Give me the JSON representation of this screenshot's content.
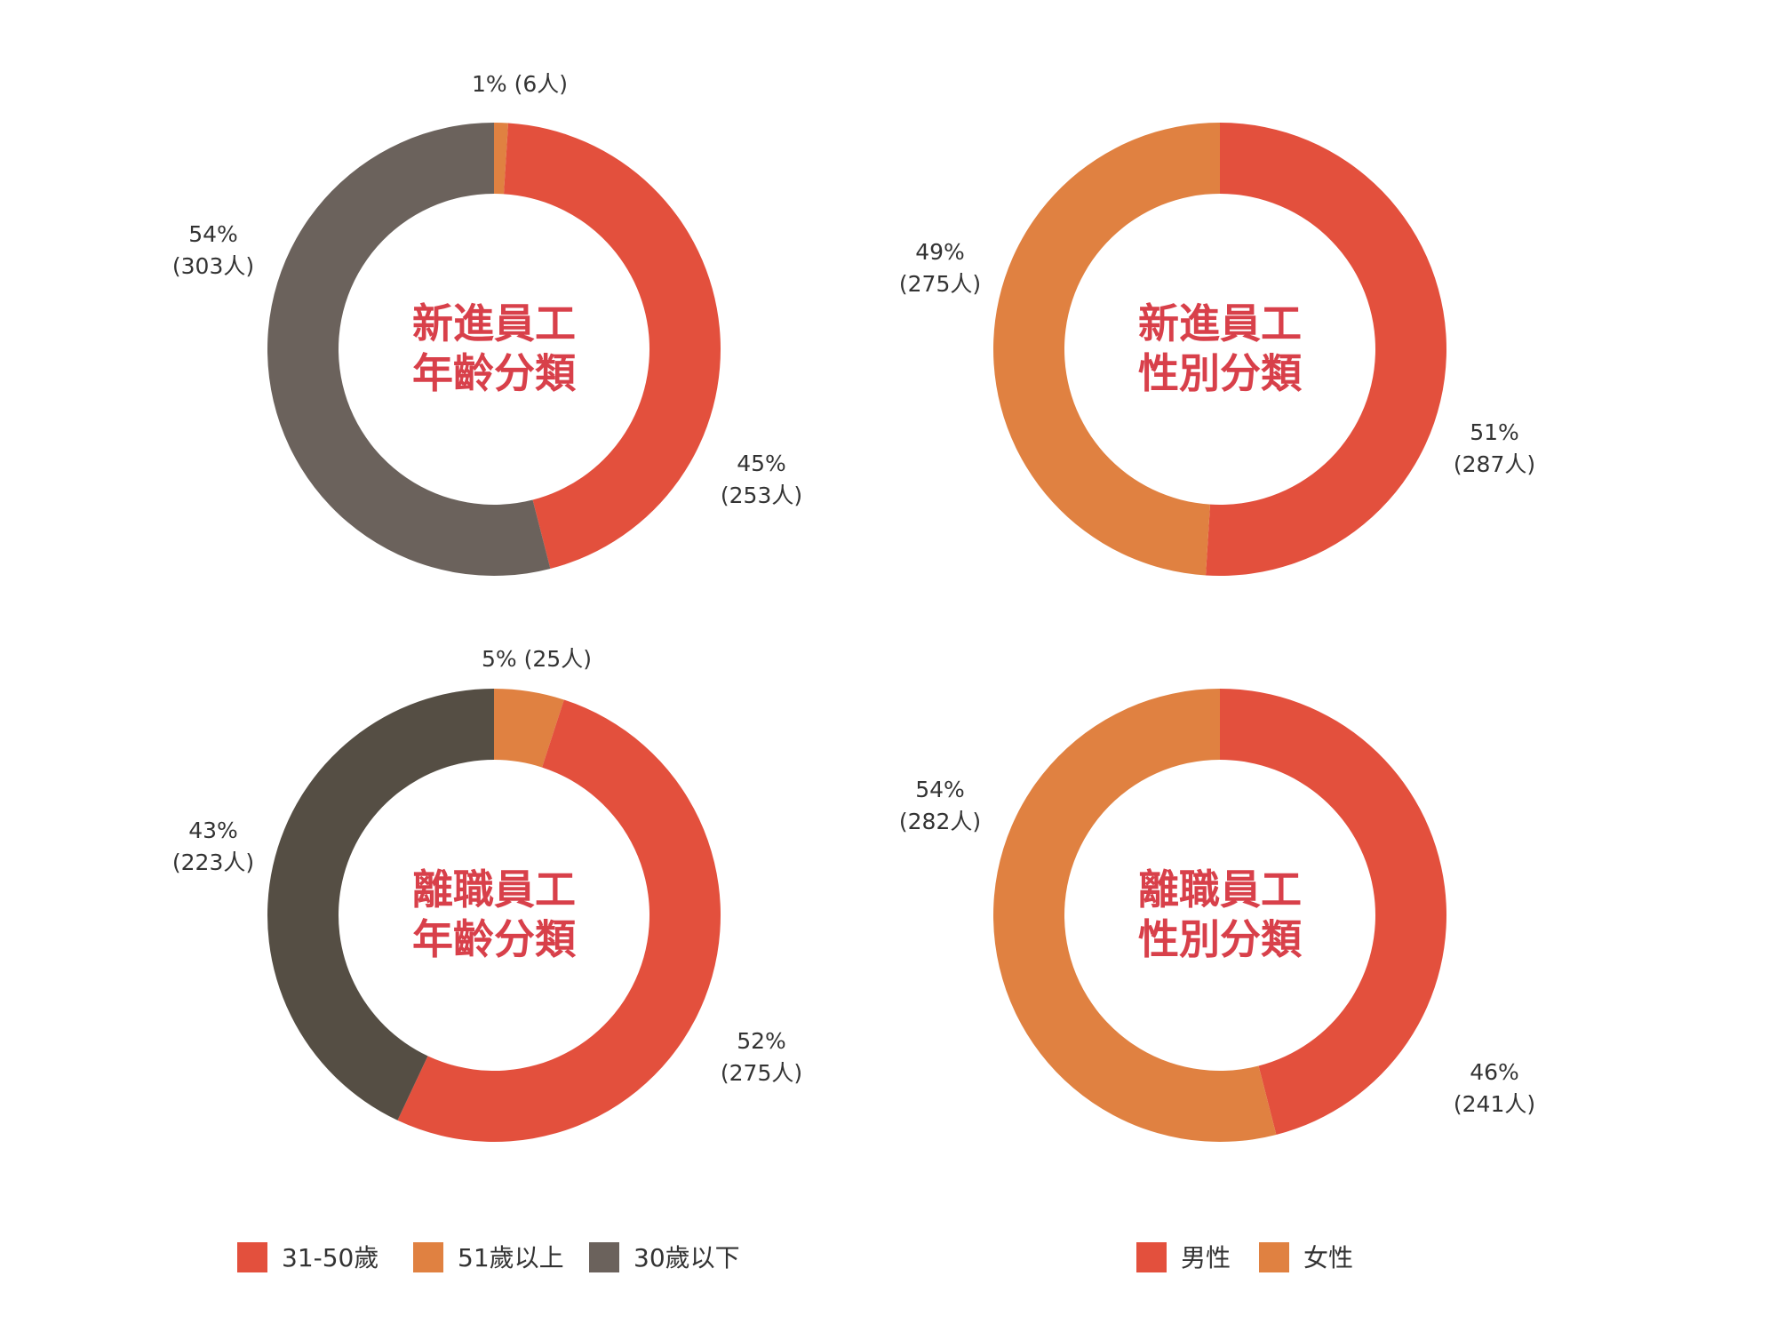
{
  "chart_data": [
    {
      "type": "pie",
      "title": [
        "新進員工",
        "年齡分類"
      ],
      "slices": [
        {
          "name": "51歲以上",
          "value": 1,
          "label": "1% (6人)",
          "color": "#e08141"
        },
        {
          "name": "31-50歲",
          "value": 45,
          "label": [
            "45%",
            "(253人)"
          ],
          "color": "#e3503d"
        },
        {
          "name": "30歲以下",
          "value": 54,
          "label": [
            "54%",
            "(303人)"
          ],
          "color": "#6b625c"
        }
      ]
    },
    {
      "type": "pie",
      "title": [
        "新進員工",
        "性別分類"
      ],
      "slices": [
        {
          "name": "男性",
          "value": 51,
          "label": [
            "51%",
            "(287人)"
          ],
          "color": "#e3503d"
        },
        {
          "name": "女性",
          "value": 49,
          "label": [
            "49%",
            "(275人)"
          ],
          "color": "#e08141"
        }
      ]
    },
    {
      "type": "pie",
      "title": [
        "離職員工",
        "年齡分類"
      ],
      "slices": [
        {
          "name": "51歲以上",
          "value": 5,
          "label": "5% (25人)",
          "color": "#e08141"
        },
        {
          "name": "31-50歲",
          "value": 52,
          "label": [
            "52%",
            "(275人)"
          ],
          "color": "#e3503d"
        },
        {
          "name": "30歲以下",
          "value": 43,
          "label": [
            "43%",
            "(223人)"
          ],
          "color": "#554e44"
        }
      ]
    },
    {
      "type": "pie",
      "title": [
        "離職員工",
        "性別分類"
      ],
      "slices": [
        {
          "name": "男性",
          "value": 46,
          "label": [
            "46%",
            "(241人)"
          ],
          "color": "#e3503d"
        },
        {
          "name": "女性",
          "value": 54,
          "label": [
            "54%",
            "(282人)"
          ],
          "color": "#e08141"
        }
      ]
    }
  ],
  "legends": {
    "age": [
      {
        "label": "31-50歲",
        "color": "#e3503d"
      },
      {
        "label": "51歲以上",
        "color": "#e08141"
      },
      {
        "label": "30歲以下",
        "color": "#6b625c"
      }
    ],
    "gender": [
      {
        "label": "男性",
        "color": "#e3503d"
      },
      {
        "label": "女性",
        "color": "#e08141"
      }
    ]
  }
}
